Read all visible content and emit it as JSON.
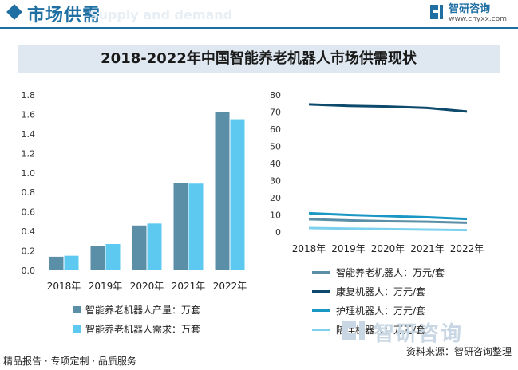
{
  "header": {
    "title": "市场供需",
    "watermark": "Supply and demand",
    "brand_name": "智研咨询",
    "brand_url": "www.chyxx.com"
  },
  "title": "2018-2022年中国智能养老机器人市场供需现状",
  "chart_data": [
    {
      "type": "bar",
      "categories": [
        "2018年",
        "2019年",
        "2020年",
        "2021年",
        "2022年"
      ],
      "ylim": [
        0,
        1.8
      ],
      "yticks": [
        "0.0",
        "0.2",
        "0.4",
        "0.6",
        "0.8",
        "1.0",
        "1.2",
        "1.4",
        "1.6",
        "1.8"
      ],
      "series": [
        {
          "name": "智能养老机器人产量：万套",
          "values": [
            0.14,
            0.25,
            0.46,
            0.9,
            1.62
          ],
          "color": "#5b8fa8"
        },
        {
          "name": "智能养老机器人需求：万套",
          "values": [
            0.15,
            0.27,
            0.48,
            0.89,
            1.55
          ],
          "color": "#5ec9f0"
        }
      ]
    },
    {
      "type": "line",
      "categories": [
        "2018年",
        "2019年",
        "2020年",
        "2021年",
        "2022年"
      ],
      "ylim": [
        0,
        80
      ],
      "yticks": [
        "0",
        "10",
        "20",
        "30",
        "40",
        "50",
        "60",
        "70",
        "80"
      ],
      "series": [
        {
          "name": "智能养老机器人：万元/套",
          "values": [
            7.5,
            6.8,
            6.3,
            6.0,
            5.4
          ],
          "color": "#5b8fa8"
        },
        {
          "name": "康复机器人：万元/套",
          "values": [
            74.5,
            73.6,
            73.2,
            72.4,
            70.3
          ],
          "color": "#0d4a6b"
        },
        {
          "name": "护理机器人：万元/套",
          "values": [
            11.0,
            10.0,
            9.3,
            8.6,
            7.6
          ],
          "color": "#1b97c4"
        },
        {
          "name": "陪伴机器人：万元/套",
          "values": [
            2.3,
            2.0,
            1.7,
            1.4,
            1.1
          ],
          "color": "#7ed0ef"
        }
      ]
    }
  ],
  "footer": {
    "left": "精品报告 · 专项定制 · 品质服务",
    "source": "资料来源：智研咨询整理",
    "watermark": "智研咨询"
  }
}
